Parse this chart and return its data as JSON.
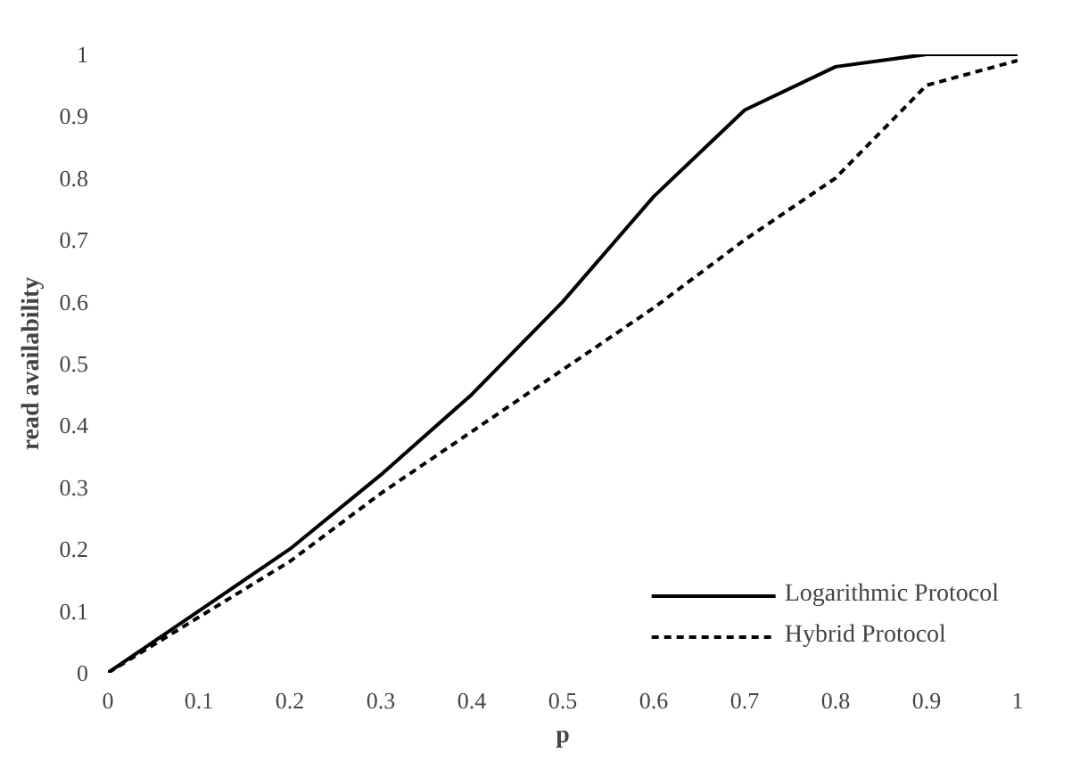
{
  "chart_data": {
    "type": "line",
    "xlabel": "p",
    "ylabel": "read availability",
    "x": [
      0,
      0.1,
      0.2,
      0.3,
      0.4,
      0.5,
      0.6,
      0.7,
      0.8,
      0.9,
      1
    ],
    "series": [
      {
        "name": "Logarithmic Protocol",
        "color": "#000000",
        "line_style": "solid",
        "values": [
          0,
          0.1,
          0.2,
          0.32,
          0.45,
          0.6,
          0.77,
          0.91,
          0.98,
          1.0,
          1.0
        ]
      },
      {
        "name": "Hybrid Protocol",
        "color": "#000000",
        "line_style": "dotted",
        "values": [
          0,
          0.09,
          0.18,
          0.29,
          0.39,
          0.49,
          0.59,
          0.7,
          0.8,
          0.95,
          0.99
        ]
      }
    ],
    "xlim": [
      0,
      1
    ],
    "ylim": [
      0,
      1
    ],
    "xticks": [
      0,
      0.1,
      0.2,
      0.3,
      0.4,
      0.5,
      0.6,
      0.7,
      0.8,
      0.9,
      1
    ],
    "yticks": [
      0,
      0.1,
      0.2,
      0.3,
      0.4,
      0.5,
      0.6,
      0.7,
      0.8,
      0.9,
      1
    ],
    "grid": false,
    "legend": "bottom right",
    "marker": "none"
  }
}
